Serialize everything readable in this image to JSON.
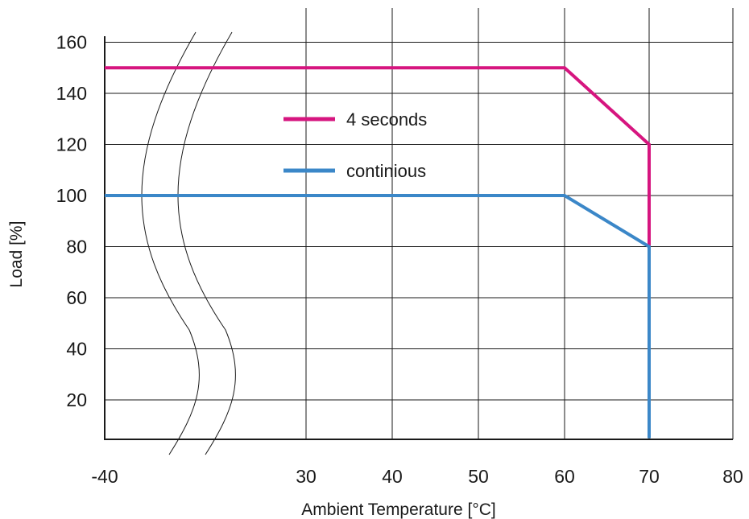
{
  "chart_data": {
    "type": "line",
    "xlabel": "Ambient Temperature [°C]",
    "ylabel": "Load [%]",
    "x_ticks": [
      "-40",
      "30",
      "40",
      "50",
      "60",
      "70",
      "80"
    ],
    "y_ticks": [
      "20",
      "40",
      "60",
      "80",
      "100",
      "120",
      "140",
      "160"
    ],
    "x_axis_break": "between -40 and 30",
    "ylim": [
      5,
      165
    ],
    "grid": true,
    "legend_position": "center",
    "series": [
      {
        "name": "4 seconds",
        "color": "#d6157f",
        "points": [
          [
            "-40",
            150
          ],
          [
            60,
            150
          ],
          [
            70,
            120
          ],
          [
            70,
            80
          ]
        ]
      },
      {
        "name": "continious",
        "color": "#3b87c8",
        "points": [
          [
            "-40",
            100
          ],
          [
            60,
            100
          ],
          [
            70,
            80
          ],
          [
            70,
            5
          ]
        ]
      }
    ]
  }
}
